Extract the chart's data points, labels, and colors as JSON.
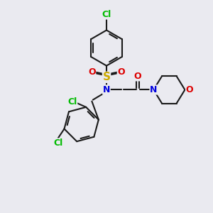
{
  "background_color": "#eaeaf0",
  "bond_color": "#1a1a1a",
  "atom_colors": {
    "Cl": "#00bb00",
    "S": "#ccaa00",
    "N": "#0000dd",
    "O": "#dd0000",
    "C": "#1a1a1a"
  },
  "lw": 1.5,
  "figsize": [
    3.0,
    3.0
  ],
  "dpi": 100,
  "xlim": [
    -4.5,
    5.5
  ],
  "ylim": [
    -4.5,
    4.5
  ]
}
